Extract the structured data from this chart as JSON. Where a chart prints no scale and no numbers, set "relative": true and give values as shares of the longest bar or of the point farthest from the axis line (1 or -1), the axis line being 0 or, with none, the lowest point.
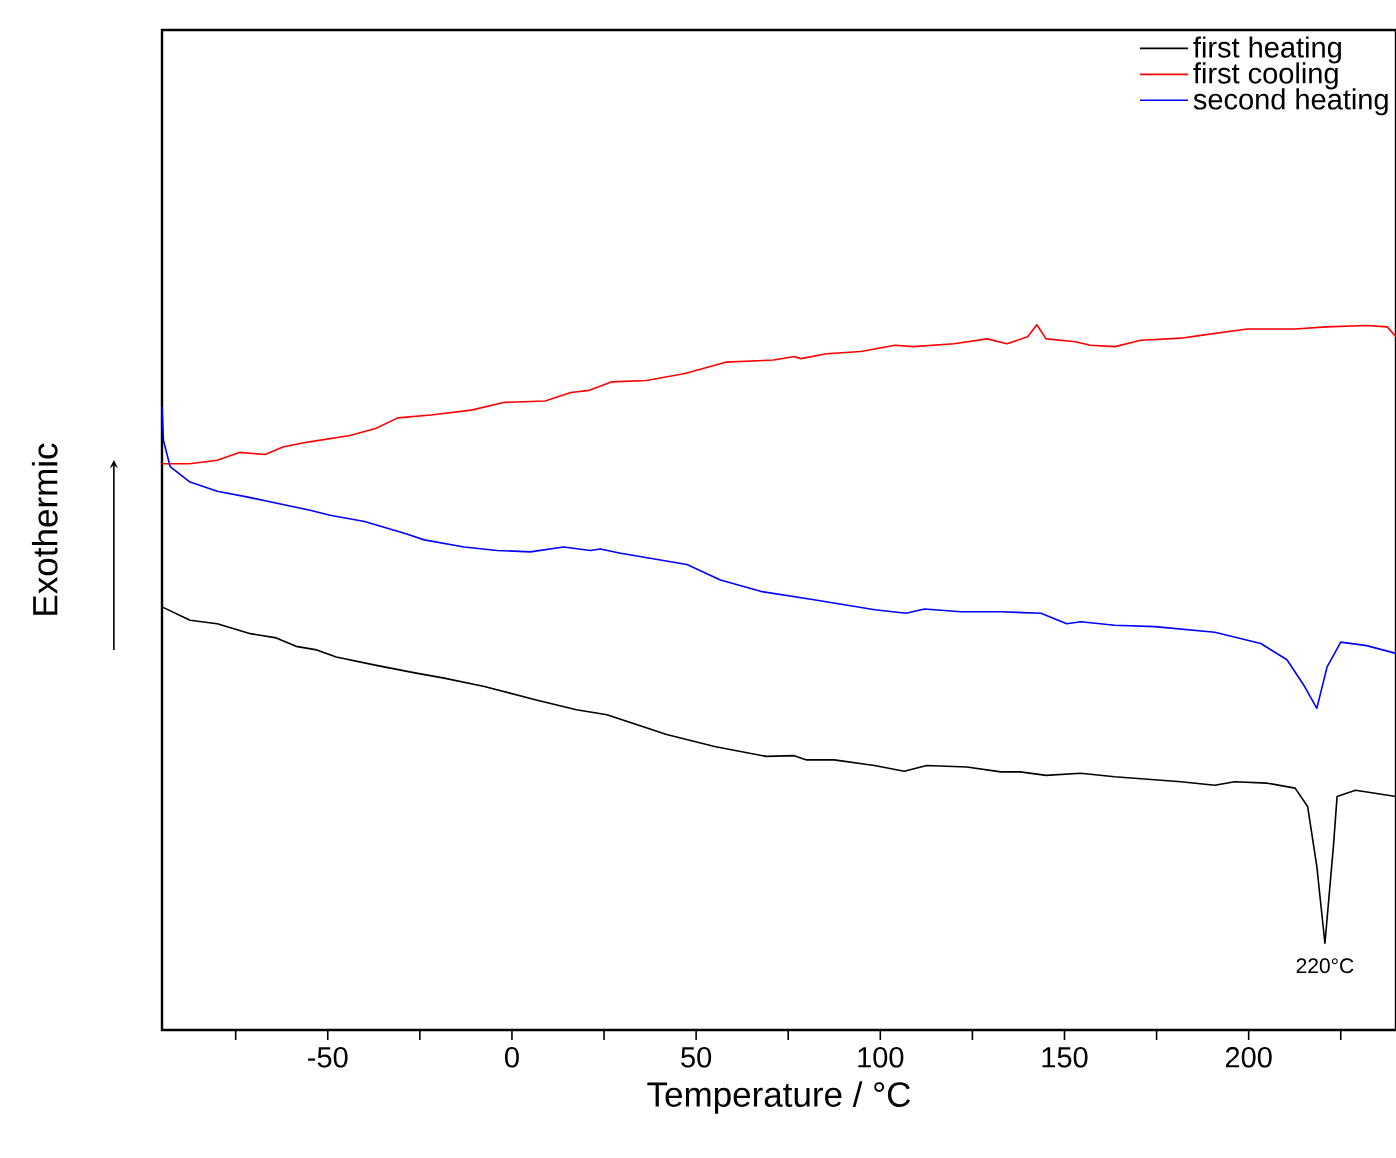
{
  "chart_data": {
    "type": "line",
    "xlabel": "Temperature / °C",
    "ylabel": "Exothermic",
    "relative": true,
    "tick_labels": "x",
    "legend": "top right",
    "xlim": [
      -95,
      240
    ],
    "xticks": [
      {
        "value": -75,
        "label": null
      },
      -50,
      {
        "value": -25,
        "label": null
      },
      0,
      {
        "value": 25,
        "label": null
      },
      50,
      {
        "value": 75,
        "label": null
      },
      100,
      {
        "value": 125,
        "label": null
      },
      150,
      {
        "value": 175,
        "label": null
      },
      200,
      {
        "value": 225,
        "label": null
      }
    ],
    "annotations": [
      {
        "text": "220°C",
        "x": 220.7,
        "y": 0.123
      }
    ],
    "series": [
      {
        "name": "first heating",
        "color": "#000000",
        "x": [
          -95,
          -87.4,
          -80,
          -71,
          -64,
          -58.6,
          -53,
          -47.7,
          -36.8,
          -26,
          -18.4,
          -7.5,
          6.6,
          17.5,
          25.8,
          42,
          55,
          69,
          76.6,
          80,
          87.5,
          98.4,
          106.5,
          112.6,
          123.5,
          132.7,
          138,
          145,
          154.4,
          163.6,
          181.6,
          190.8,
          196.2,
          205,
          212.6,
          216,
          218.5,
          220.7,
          223,
          224,
          229,
          240
        ],
        "values": [
          0.6,
          0.581,
          0.576,
          0.562,
          0.556,
          0.544,
          0.539,
          0.529,
          0.517,
          0.506,
          0.499,
          0.487,
          0.468,
          0.454,
          0.447,
          0.419,
          0.402,
          0.388,
          0.389,
          0.383,
          0.383,
          0.375,
          0.367,
          0.375,
          0.373,
          0.366,
          0.366,
          0.361,
          0.364,
          0.359,
          0.352,
          0.347,
          0.352,
          0.35,
          0.343,
          0.317,
          0.232,
          0.123,
          0.26,
          0.331,
          0.34,
          0.331
        ]
      },
      {
        "name": "first cooling",
        "color": "#ff0000",
        "x": [
          -95,
          -87.5,
          -80,
          -74,
          -67,
          -62,
          -55,
          -44,
          -37,
          -31,
          -22,
          -11,
          -2,
          9,
          16,
          21,
          27,
          36.5,
          47,
          58,
          71,
          76.7,
          78.4,
          85.4,
          94.7,
          104,
          109,
          120,
          129,
          134.4,
          140,
          142.5,
          145,
          153,
          157,
          163.7,
          170.7,
          181.6,
          187,
          199.6,
          212.6,
          221,
          232,
          237.6,
          240
        ],
        "values": [
          0.803,
          0.803,
          0.808,
          0.819,
          0.816,
          0.827,
          0.834,
          0.843,
          0.853,
          0.868,
          0.872,
          0.879,
          0.89,
          0.892,
          0.904,
          0.907,
          0.919,
          0.921,
          0.931,
          0.947,
          0.95,
          0.955,
          0.952,
          0.959,
          0.962,
          0.971,
          0.969,
          0.973,
          0.98,
          0.973,
          0.983,
          1,
          0.98,
          0.976,
          0.971,
          0.969,
          0.978,
          0.981,
          0.985,
          0.994,
          0.994,
          0.997,
          0.999,
          0.997,
          0.983
        ]
      },
      {
        "name": "second heating",
        "color": "#0000ff",
        "x": [
          -95,
          -94.6,
          -92.8,
          -87.4,
          -80,
          -72,
          -65.7,
          -54.8,
          -49.4,
          -40,
          -29,
          -23.8,
          -13,
          -4,
          5,
          14,
          21.3,
          24,
          29.5,
          47.5,
          56.6,
          67.5,
          82,
          98.5,
          107,
          112,
          121.8,
          132.6,
          143.6,
          150.6,
          154.4,
          163.6,
          174.5,
          190.8,
          203.3,
          210.4,
          215.2,
          218.5,
          221.3,
          225,
          232,
          240
        ],
        "values": [
          0.884,
          0.836,
          0.799,
          0.777,
          0.764,
          0.756,
          0.749,
          0.737,
          0.73,
          0.721,
          0.704,
          0.695,
          0.685,
          0.68,
          0.678,
          0.685,
          0.68,
          0.682,
          0.676,
          0.66,
          0.638,
          0.622,
          0.61,
          0.596,
          0.591,
          0.597,
          0.593,
          0.593,
          0.591,
          0.576,
          0.579,
          0.574,
          0.572,
          0.564,
          0.548,
          0.525,
          0.487,
          0.456,
          0.515,
          0.55,
          0.545,
          0.534
        ]
      }
    ]
  }
}
